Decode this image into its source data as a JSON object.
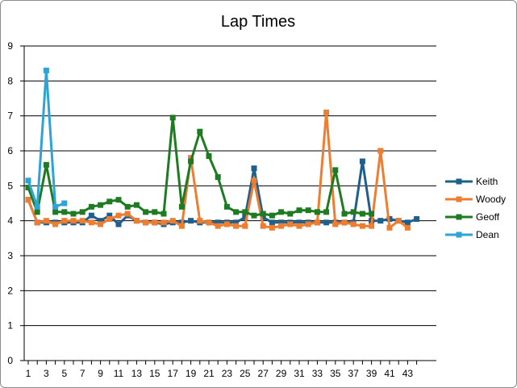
{
  "chart_data": {
    "type": "line",
    "title": "Lap Times",
    "xlabel": "",
    "ylabel": "",
    "ylim": [
      0,
      9
    ],
    "yticks": [
      0,
      1,
      2,
      3,
      4,
      5,
      6,
      7,
      8,
      9
    ],
    "xlim": [
      1,
      44
    ],
    "xticks": [
      1,
      3,
      5,
      7,
      9,
      11,
      13,
      15,
      17,
      19,
      21,
      23,
      25,
      27,
      29,
      31,
      33,
      35,
      37,
      39,
      41,
      43
    ],
    "grid": "horizontal",
    "legend_position": "right",
    "series": [
      {
        "name": "Keith",
        "color": "#1f5f8b",
        "x": [
          1,
          2,
          3,
          4,
          5,
          6,
          7,
          8,
          9,
          10,
          11,
          12,
          13,
          14,
          15,
          16,
          17,
          18,
          19,
          20,
          21,
          22,
          23,
          24,
          25,
          26,
          27,
          28,
          29,
          30,
          31,
          32,
          33,
          34,
          35,
          36,
          37,
          38,
          39,
          40,
          41,
          42,
          43,
          44
        ],
        "values": [
          4.6,
          3.95,
          3.95,
          3.95,
          3.95,
          3.95,
          3.95,
          4.15,
          4.0,
          4.15,
          3.9,
          4.15,
          4.0,
          3.95,
          3.95,
          3.9,
          3.95,
          3.95,
          4.0,
          3.95,
          3.95,
          3.95,
          3.95,
          3.95,
          4.1,
          5.5,
          4.1,
          3.95,
          3.95,
          3.95,
          3.95,
          3.95,
          3.95,
          3.95,
          3.95,
          3.95,
          3.95,
          5.7,
          4.0,
          4.0,
          4.05,
          4.0,
          3.95,
          4.05
        ]
      },
      {
        "name": "Woody",
        "color": "#ed7d31",
        "x": [
          1,
          2,
          3,
          4,
          5,
          6,
          7,
          8,
          9,
          10,
          11,
          12,
          13,
          14,
          15,
          16,
          17,
          18,
          19,
          20,
          21,
          22,
          23,
          24,
          25,
          26,
          27,
          28,
          29,
          30,
          31,
          32,
          33,
          34,
          35,
          36,
          37,
          38,
          39,
          40,
          41,
          42,
          43
        ],
        "values": [
          4.6,
          3.95,
          4.0,
          3.9,
          4.0,
          4.0,
          4.0,
          3.95,
          3.9,
          4.05,
          4.15,
          4.2,
          4.0,
          3.95,
          3.95,
          3.95,
          4.0,
          3.85,
          5.8,
          4.0,
          3.95,
          3.85,
          3.9,
          3.85,
          3.85,
          5.15,
          3.85,
          3.8,
          3.85,
          3.9,
          3.85,
          3.9,
          3.95,
          7.1,
          3.9,
          3.95,
          3.9,
          3.85,
          3.85,
          6.0,
          3.8,
          4.0,
          3.8
        ]
      },
      {
        "name": "Geoff",
        "color": "#1e7b22",
        "x": [
          1,
          2,
          3,
          4,
          5,
          6,
          7,
          8,
          9,
          10,
          11,
          12,
          13,
          14,
          15,
          16,
          17,
          18,
          19,
          20,
          21,
          22,
          23,
          24,
          25,
          26,
          27,
          28,
          29,
          30,
          31,
          32,
          33,
          34,
          35,
          36,
          37,
          38,
          39
        ],
        "values": [
          4.95,
          4.25,
          5.6,
          4.25,
          4.25,
          4.2,
          4.25,
          4.4,
          4.45,
          4.55,
          4.6,
          4.4,
          4.45,
          4.25,
          4.25,
          4.2,
          6.95,
          4.4,
          5.7,
          6.55,
          5.85,
          5.25,
          4.4,
          4.25,
          4.25,
          4.15,
          4.2,
          4.15,
          4.25,
          4.2,
          4.3,
          4.3,
          4.25,
          4.25,
          5.45,
          4.2,
          4.25,
          4.2,
          4.2
        ]
      },
      {
        "name": "Dean",
        "color": "#2ea3d6",
        "x": [
          1,
          2,
          3,
          4,
          5
        ],
        "values": [
          5.15,
          4.4,
          8.3,
          4.4,
          4.5
        ]
      }
    ]
  }
}
